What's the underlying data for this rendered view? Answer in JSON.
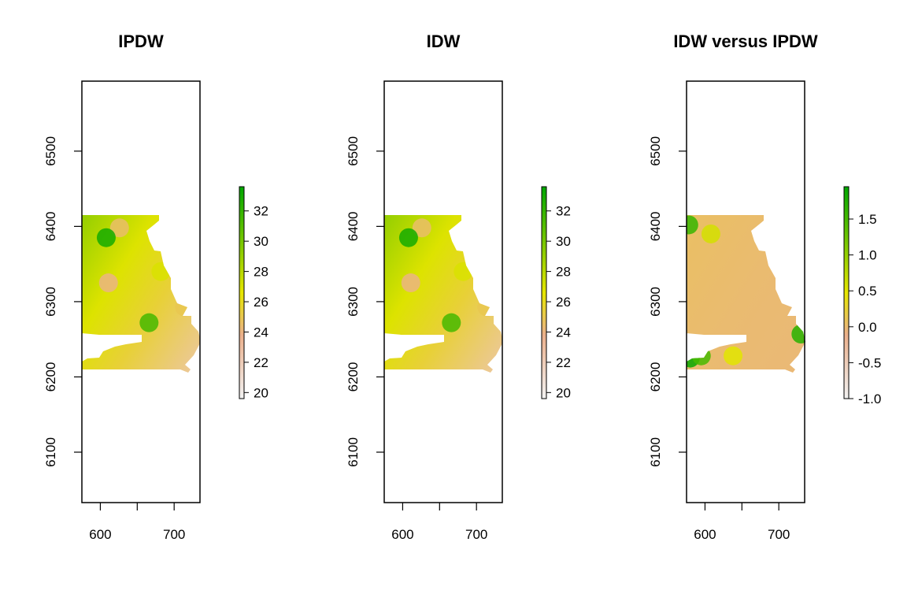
{
  "chart_data": [
    {
      "type": "heatmap",
      "title": "IPDW",
      "xlabel": "",
      "ylabel": "",
      "xlim": [
        575,
        735
      ],
      "ylim": [
        6033,
        6593
      ],
      "x_ticks": [
        600,
        700
      ],
      "x_tick_marks": [
        600,
        650,
        700
      ],
      "y_ticks": [
        6100,
        6200,
        6300,
        6400,
        6500
      ],
      "colorbar": {
        "range": [
          19.6,
          33.6
        ],
        "ticks": [
          "20",
          "22",
          "24",
          "26",
          "28",
          "30",
          "32"
        ],
        "tick_values": [
          20,
          22,
          24,
          26,
          28,
          30,
          32
        ],
        "low_color": "#f2f2f2",
        "mid_color": "#e6e600",
        "high_color": "#00a600"
      },
      "extent": {
        "x": [
          576,
          735
        ],
        "y": [
          6210,
          6415
        ]
      },
      "hotspots": [
        {
          "x": 626,
          "y": 6398,
          "value": 24.5
        },
        {
          "x": 611,
          "y": 6325,
          "value": 24
        },
        {
          "x": 666,
          "y": 6272,
          "value": 31.5
        },
        {
          "x": 682,
          "y": 6340,
          "value": 27
        },
        {
          "x": 714,
          "y": 6293,
          "value": 25
        },
        {
          "x": 608,
          "y": 6385,
          "value": 33
        }
      ]
    },
    {
      "type": "heatmap",
      "title": "IDW",
      "xlabel": "",
      "ylabel": "",
      "xlim": [
        575,
        735
      ],
      "ylim": [
        6033,
        6593
      ],
      "x_ticks": [
        600,
        700
      ],
      "x_tick_marks": [
        600,
        650,
        700
      ],
      "y_ticks": [
        6100,
        6200,
        6300,
        6400,
        6500
      ],
      "colorbar": {
        "range": [
          19.6,
          33.6
        ],
        "ticks": [
          "20",
          "22",
          "24",
          "26",
          "28",
          "30",
          "32"
        ],
        "tick_values": [
          20,
          22,
          24,
          26,
          28,
          30,
          32
        ],
        "low_color": "#f2f2f2",
        "mid_color": "#e6e600",
        "high_color": "#00a600"
      },
      "extent": {
        "x": [
          576,
          735
        ],
        "y": [
          6210,
          6415
        ]
      },
      "hotspots": [
        {
          "x": 626,
          "y": 6398,
          "value": 24.5
        },
        {
          "x": 611,
          "y": 6325,
          "value": 24
        },
        {
          "x": 666,
          "y": 6272,
          "value": 31.5
        },
        {
          "x": 682,
          "y": 6340,
          "value": 27
        },
        {
          "x": 714,
          "y": 6293,
          "value": 25
        },
        {
          "x": 608,
          "y": 6385,
          "value": 33
        }
      ]
    },
    {
      "type": "heatmap",
      "title": "IDW versus IPDW",
      "xlabel": "",
      "ylabel": "",
      "xlim": [
        575,
        735
      ],
      "ylim": [
        6033,
        6593
      ],
      "x_ticks": [
        600,
        700
      ],
      "x_tick_marks": [
        600,
        650,
        700
      ],
      "y_ticks": [
        6100,
        6200,
        6300,
        6400,
        6500
      ],
      "colorbar": {
        "range": [
          -1.0,
          1.95
        ],
        "ticks": [
          "-1.0",
          "-0.5",
          "0.0",
          "0.5",
          "1.0",
          "1.5"
        ],
        "tick_values": [
          -1.0,
          -0.5,
          0.0,
          0.5,
          1.0,
          1.5
        ],
        "low_color": "#f2f2f2",
        "mid_color": "#e6e600",
        "high_color": "#00a600"
      },
      "extent": {
        "x": [
          576,
          735
        ],
        "y": [
          6210,
          6415
        ]
      },
      "hotspots": [
        {
          "x": 580,
          "y": 6225,
          "value": 1.9
        },
        {
          "x": 595,
          "y": 6228,
          "value": 1.5
        },
        {
          "x": 578,
          "y": 6402,
          "value": 1.6
        },
        {
          "x": 730,
          "y": 6257,
          "value": 1.7
        },
        {
          "x": 608,
          "y": 6390,
          "value": 0.6
        },
        {
          "x": 638,
          "y": 6228,
          "value": 0.5
        }
      ]
    }
  ]
}
